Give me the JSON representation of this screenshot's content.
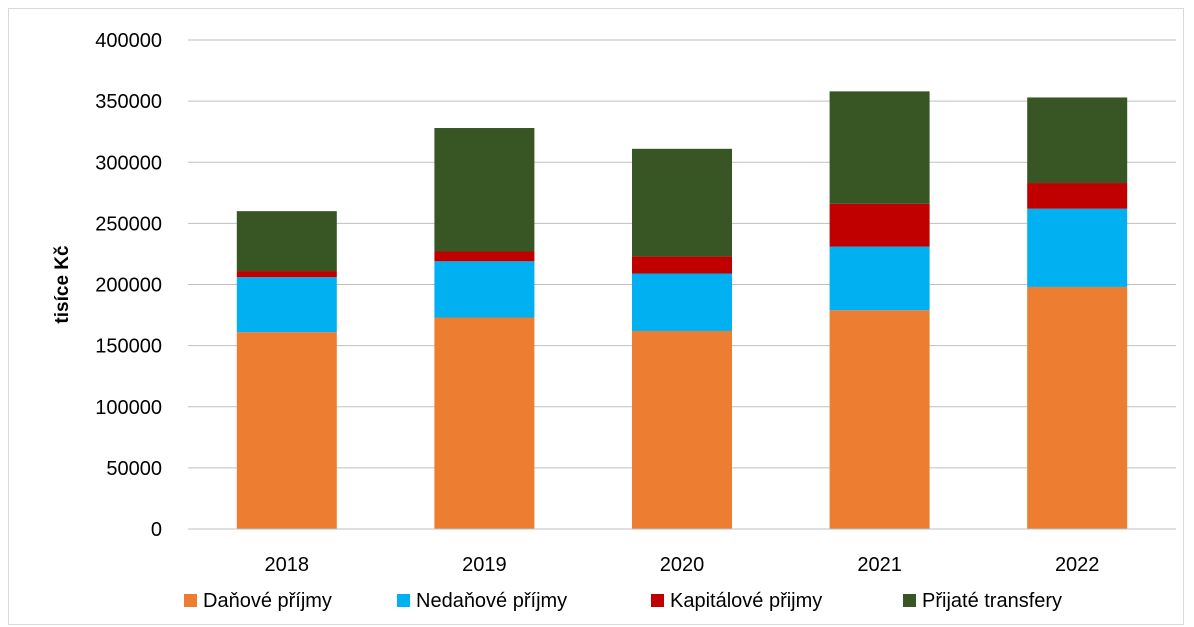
{
  "chart_data": {
    "type": "bar",
    "stacked": true,
    "title": "",
    "xlabel": "",
    "ylabel": "tisíce Kč",
    "ylim": [
      0,
      400000
    ],
    "yticks": [
      0,
      50000,
      100000,
      150000,
      200000,
      250000,
      300000,
      350000,
      400000
    ],
    "categories": [
      "2018",
      "2019",
      "2020",
      "2021",
      "2022"
    ],
    "grid": true,
    "legend_position": "bottom",
    "series": [
      {
        "name": "Daňové příjmy",
        "color": "#ED7D31",
        "values": [
          161000,
          173000,
          162000,
          179000,
          198000
        ]
      },
      {
        "name": "Nedaňové příjmy",
        "color": "#00B0F0",
        "values": [
          45000,
          46000,
          47000,
          52000,
          64000
        ]
      },
      {
        "name": "Kapitálové přijmy",
        "color": "#C00000",
        "values": [
          5000,
          8000,
          14000,
          35000,
          21000
        ]
      },
      {
        "name": "Přijaté transfery",
        "color": "#375623",
        "values": [
          49000,
          101000,
          88000,
          92000,
          70000
        ]
      }
    ]
  }
}
